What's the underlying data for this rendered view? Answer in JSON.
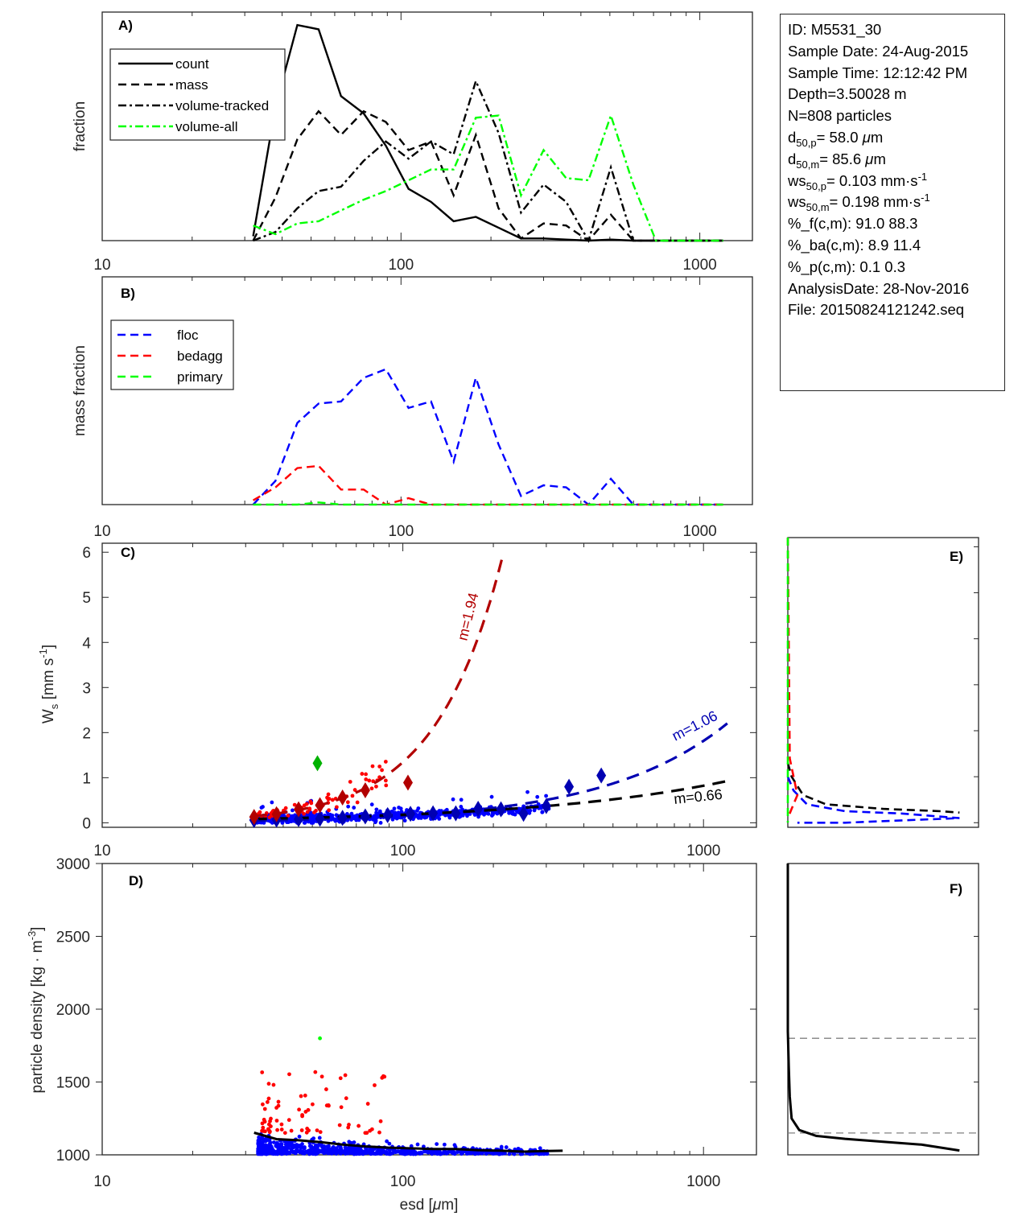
{
  "figure": {
    "info_box": {
      "lines": [
        {
          "kind": "plain",
          "text": "ID: M5531_30"
        },
        {
          "kind": "plain",
          "text": "Sample Date: 24-Aug-2015"
        },
        {
          "kind": "plain",
          "text": "Sample Time: 12:12:42 PM"
        },
        {
          "kind": "plain",
          "text": "Depth=3.50028 m"
        },
        {
          "kind": "plain",
          "text": "N=808 particles"
        },
        {
          "kind": "sub",
          "base": "d",
          "sub": "50,p",
          "rest": "=  58.0 ",
          "mu": "μ",
          "tail": "m"
        },
        {
          "kind": "sub",
          "base": "d",
          "sub": "50,m",
          "rest": "=  85.6 ",
          "mu": "μ",
          "tail": "m"
        },
        {
          "kind": "subsup",
          "base": "ws",
          "sub": "50,p",
          "rest": "= 0.103 mm·s",
          "sup": "-1"
        },
        {
          "kind": "subsup",
          "base": "ws",
          "sub": "50,m",
          "rest": "= 0.198 mm·s",
          "sup": "-1"
        },
        {
          "kind": "plain",
          "text": "%_f(c,m): 91.0 88.3"
        },
        {
          "kind": "plain",
          "text": "%_ba(c,m): 8.9 11.4"
        },
        {
          "kind": "plain",
          "text": "%_p(c,m): 0.1 0.3"
        },
        {
          "kind": "plain",
          "text": "AnalysisDate: 28-Nov-2016"
        },
        {
          "kind": "plain",
          "text": "File: 20150824121242.seq"
        }
      ]
    },
    "colors": {
      "black": "#000000",
      "green": "#00ff00",
      "blue": "#0000ff",
      "red": "#ff0000",
      "dark_red": "#b20000",
      "dark_blue": "#0000b2",
      "diamond_green": "#00b200",
      "gray_ref": "#808080"
    }
  },
  "chart_data": [
    {
      "panel": "A",
      "type": "line",
      "label": "A)",
      "xscale": "log",
      "xlim": [
        10,
        1500
      ],
      "xticks": [
        10,
        100,
        1000
      ],
      "xtick_labels": [
        "10",
        "100",
        "1000"
      ],
      "ylabel": "fraction",
      "ylim": [
        0,
        1
      ],
      "yticks_shown": false,
      "legend": {
        "placement": "upper-left",
        "entries": [
          "count",
          "mass",
          "volume-tracked",
          "volume-all"
        ]
      },
      "x": [
        32,
        38,
        45,
        53,
        63,
        75,
        89,
        106,
        126,
        150,
        178,
        212,
        252,
        300,
        357,
        424,
        504,
        599,
        713,
        847,
        1008,
        1198
      ],
      "series": [
        {
          "name": "count",
          "style": "solid",
          "color": "#000000",
          "values": [
            0.02,
            0.62,
            1.0,
            0.98,
            0.67,
            0.59,
            0.44,
            0.24,
            0.18,
            0.09,
            0.11,
            0.06,
            0.01,
            0.01,
            0.005,
            0.0,
            0.005,
            0.0,
            0.0,
            0.0,
            0.0,
            0.0
          ]
        },
        {
          "name": "mass",
          "style": "dashed",
          "color": "#000000",
          "values": [
            0.0,
            0.2,
            0.47,
            0.6,
            0.49,
            0.6,
            0.55,
            0.42,
            0.46,
            0.21,
            0.49,
            0.15,
            0.01,
            0.08,
            0.07,
            0.0,
            0.12,
            0.0,
            0.0,
            0.0,
            0.0,
            0.0
          ]
        },
        {
          "name": "volume-tracked",
          "style": "dashdot",
          "color": "#000000",
          "values": [
            0.0,
            0.04,
            0.15,
            0.23,
            0.25,
            0.37,
            0.46,
            0.38,
            0.46,
            0.4,
            0.74,
            0.5,
            0.13,
            0.26,
            0.18,
            0.0,
            0.34,
            0.0,
            0.0,
            0.0,
            0.0,
            0.0
          ]
        },
        {
          "name": "volume-all",
          "style": "dashdot",
          "color": "#00ff00",
          "values": [
            0.07,
            0.03,
            0.08,
            0.09,
            0.14,
            0.19,
            0.23,
            0.28,
            0.33,
            0.33,
            0.57,
            0.58,
            0.21,
            0.42,
            0.29,
            0.28,
            0.58,
            0.26,
            0.0,
            0.0,
            0.0,
            0.0
          ]
        }
      ]
    },
    {
      "panel": "B",
      "type": "line",
      "label": "B)",
      "xscale": "log",
      "xlim": [
        10,
        1500
      ],
      "xticks": [
        10,
        100,
        1000
      ],
      "xtick_labels": [
        "10",
        "100",
        "1000"
      ],
      "ylabel": "mass fraction",
      "ylim": [
        0,
        1
      ],
      "yticks_shown": false,
      "legend": {
        "placement": "upper-left",
        "entries": [
          "floc",
          "bedagg",
          "primary"
        ]
      },
      "x": [
        32,
        38,
        45,
        53,
        63,
        75,
        89,
        106,
        126,
        150,
        178,
        212,
        252,
        300,
        357,
        424,
        504,
        599,
        713,
        847,
        1008,
        1198
      ],
      "series": [
        {
          "name": "floc",
          "style": "dashed",
          "color": "#0000ff",
          "values": [
            0.0,
            0.11,
            0.38,
            0.47,
            0.48,
            0.59,
            0.63,
            0.45,
            0.48,
            0.2,
            0.59,
            0.28,
            0.04,
            0.09,
            0.08,
            0.0,
            0.12,
            0.0,
            0.0,
            0.0,
            0.0,
            0.0
          ]
        },
        {
          "name": "bedagg",
          "style": "dashed",
          "color": "#ff0000",
          "values": [
            0.02,
            0.08,
            0.17,
            0.18,
            0.07,
            0.07,
            0.0,
            0.03,
            0.0,
            0.0,
            0.0,
            0.0,
            0.0,
            0.0,
            0.0,
            0.0,
            0.0,
            0.0,
            0.0,
            0.0,
            0.0,
            0.0
          ]
        },
        {
          "name": "primary",
          "style": "dashed",
          "color": "#00ff00",
          "values": [
            0.0,
            0.0,
            0.0,
            0.01,
            0.0,
            0.0,
            0.0,
            0.0,
            0.0,
            0.0,
            0.0,
            0.0,
            0.0,
            0.0,
            0.0,
            0.0,
            0.0,
            0.0,
            0.0,
            0.0,
            0.0,
            0.0
          ]
        }
      ]
    },
    {
      "panel": "C",
      "type": "scatter",
      "label": "C)",
      "xscale": "log",
      "xlim": [
        10,
        1500
      ],
      "xticks": [
        10,
        100,
        1000
      ],
      "xtick_labels": [
        "10",
        "100",
        "1000"
      ],
      "ylabel": "W_s [mm s^-1]",
      "ylim": [
        -0.1,
        6.2
      ],
      "yticks": [
        0,
        1,
        2,
        3,
        4,
        5,
        6
      ],
      "ytick_labels": [
        "0",
        "1",
        "2",
        "3",
        "4",
        "5",
        "6"
      ],
      "fits": [
        {
          "name": "bedagg fit",
          "label": "m=1.94",
          "color": "#b20000",
          "exponent": 1.94,
          "coef": 0.000177,
          "x_range": [
            32,
            222
          ]
        },
        {
          "name": "floc fit",
          "label": "m=1.06",
          "color": "#0000b2",
          "exponent": 1.06,
          "coef": 0.0012,
          "x_range": [
            32,
            1200
          ]
        },
        {
          "name": "all fit",
          "label": "m=0.66",
          "color": "#000000",
          "exponent": 0.66,
          "coef": 0.0086,
          "x_range": [
            32,
            1200
          ]
        }
      ],
      "binned_means": {
        "floc": {
          "color": "#0000b2",
          "x": [
            32,
            38,
            45,
            53,
            63,
            75,
            89,
            106,
            126,
            150,
            178,
            212,
            252,
            300,
            357,
            457
          ],
          "y": [
            0.06,
            0.07,
            0.08,
            0.09,
            0.11,
            0.14,
            0.17,
            0.2,
            0.21,
            0.21,
            0.31,
            0.3,
            0.2,
            0.37,
            0.8,
            1.05
          ]
        },
        "bedagg": {
          "color": "#b20000",
          "x": [
            32,
            38,
            45,
            53,
            63,
            75,
            104
          ],
          "y": [
            0.13,
            0.19,
            0.3,
            0.39,
            0.56,
            0.72,
            0.89
          ]
        },
        "primary": {
          "color": "#00b200",
          "x": [
            52
          ],
          "y": [
            1.32
          ]
        }
      },
      "scatter_series": [
        {
          "name": "floc particles",
          "color": "#0000ff",
          "count_approx": 735,
          "x_range": [
            32,
            460
          ],
          "y_range": [
            0.0,
            0.65
          ]
        },
        {
          "name": "bedagg particles",
          "color": "#ff0000",
          "count_approx": 72,
          "x_range": [
            32,
            110
          ],
          "y_range": [
            0.05,
            1.22
          ]
        },
        {
          "name": "primary particles",
          "color": "#00ff00",
          "count_approx": 1,
          "x_range": [
            52,
            52
          ],
          "y_range": [
            1.3,
            1.3
          ]
        }
      ]
    },
    {
      "panel": "D",
      "type": "scatter",
      "label": "D)",
      "xscale": "log",
      "xlim": [
        10,
        1500
      ],
      "xticks": [
        10,
        100,
        1000
      ],
      "xtick_labels": [
        "10",
        "100",
        "1000"
      ],
      "xlabel": "esd [μm]",
      "ylabel": "particle density [kg · m^-3]",
      "ylim": [
        1000,
        3000
      ],
      "yticks": [
        1000,
        1500,
        2000,
        2500,
        3000
      ],
      "ytick_labels": [
        "1000",
        "1500",
        "2000",
        "2500",
        "3000"
      ],
      "trend_line": {
        "color": "#000000",
        "x": [
          32,
          38,
          45,
          53,
          63,
          75,
          89,
          106,
          126,
          150,
          178,
          212,
          252,
          300,
          340
        ],
        "y": [
          1152,
          1108,
          1100,
          1088,
          1070,
          1058,
          1050,
          1045,
          1040,
          1040,
          1032,
          1028,
          1022,
          1026,
          1028
        ]
      },
      "scatter_series": [
        {
          "name": "floc particles",
          "color": "#0000ff",
          "count_approx": 735,
          "x_range": [
            33,
            450
          ],
          "y_range": [
            1005,
            1150
          ]
        },
        {
          "name": "bedagg particles",
          "color": "#ff0000",
          "count_approx": 72,
          "x_range": [
            34,
            105
          ],
          "y_range": [
            1150,
            1600
          ]
        },
        {
          "name": "primary particles",
          "color": "#00ff00",
          "count_approx": 1,
          "x_range": [
            53,
            53
          ],
          "y_range": [
            1800,
            1800
          ]
        }
      ]
    },
    {
      "panel": "E",
      "type": "line",
      "label": "E)",
      "description": "cumulative distributions of settling velocity (shares W_s y-axis with C)",
      "ylim": [
        -0.1,
        6.2
      ],
      "yticks": [
        0,
        1,
        2,
        3,
        4,
        5,
        6
      ],
      "xlim": [
        0,
        1
      ],
      "series": [
        {
          "name": "all",
          "color": "#000000",
          "x": [
            0,
            0.02,
            0.08,
            0.2,
            0.5,
            0.8,
            0.9
          ],
          "y": [
            1.3,
            1.0,
            0.6,
            0.4,
            0.3,
            0.25,
            0.22
          ]
        },
        {
          "name": "floc",
          "color": "#0000ff",
          "x": [
            0,
            0.03,
            0.1,
            0.3,
            0.6,
            0.9,
            0.6,
            0.3,
            0.05
          ],
          "y": [
            1.0,
            0.7,
            0.4,
            0.25,
            0.2,
            0.1,
            0.05,
            0.0,
            0.0
          ]
        },
        {
          "name": "bedagg",
          "color": "#ff0000",
          "x": [
            0,
            0.01,
            0.05,
            0.02,
            0.0
          ],
          "y": [
            6.2,
            1.4,
            0.6,
            0.3,
            0.1
          ]
        },
        {
          "name": "primary",
          "color": "#00ff00",
          "x": [
            0,
            0
          ],
          "y": [
            6.2,
            0.0
          ]
        }
      ]
    },
    {
      "panel": "F",
      "type": "line",
      "label": "F)",
      "description": "cumulative distribution of particle density (shares density y-axis with D)",
      "ylim": [
        1000,
        3000
      ],
      "yticks": [
        1000,
        1500,
        2000,
        2500,
        3000
      ],
      "xlim": [
        0,
        1
      ],
      "reference_lines": [
        1800,
        1150
      ],
      "series": [
        {
          "name": "all",
          "color": "#000000",
          "x": [
            0,
            0.0,
            0.005,
            0.01,
            0.02,
            0.06,
            0.15,
            0.3,
            0.5,
            0.7,
            0.9
          ],
          "y": [
            3000,
            1850,
            1600,
            1400,
            1250,
            1170,
            1130,
            1110,
            1090,
            1070,
            1030
          ]
        }
      ]
    }
  ]
}
